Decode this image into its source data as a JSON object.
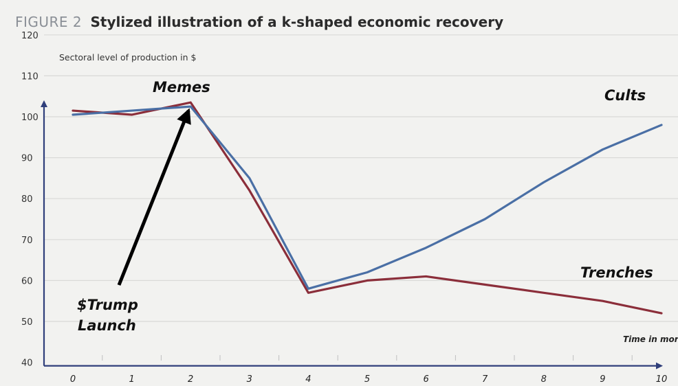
{
  "figure": {
    "label": "FIGURE 2",
    "title": "Stylized illustration of a k-shaped economic recovery"
  },
  "chart_data": {
    "type": "line",
    "title": "Stylized illustration of a k-shaped economic recovery",
    "ylabel": "Sectoral level of production in $",
    "xlabel": "Time in mor",
    "x": [
      0,
      1,
      2,
      3,
      4,
      5,
      6,
      7,
      8,
      9,
      10
    ],
    "ylim": [
      40,
      120
    ],
    "yticks": [
      40,
      50,
      60,
      70,
      80,
      90,
      100,
      110,
      120
    ],
    "grid": true,
    "series": [
      {
        "key": "upper",
        "color": "#4a6fa5",
        "values": [
          100.5,
          101.5,
          102.5,
          85,
          58,
          62,
          68,
          75,
          84,
          92,
          98
        ]
      },
      {
        "key": "lower",
        "color": "#8b2e3a",
        "values": [
          101.5,
          100.5,
          103.5,
          82,
          57,
          60,
          61,
          59,
          57,
          55,
          52
        ]
      }
    ],
    "annotations": {
      "memes": "Memes",
      "cults": "Cults",
      "trenches": "Trenches",
      "launch_line1": "$Trump",
      "launch_line2": "Launch"
    },
    "colors": {
      "arrow": "#000000",
      "axis": "#2f3e7a",
      "grid": "#d9d9d7"
    }
  }
}
